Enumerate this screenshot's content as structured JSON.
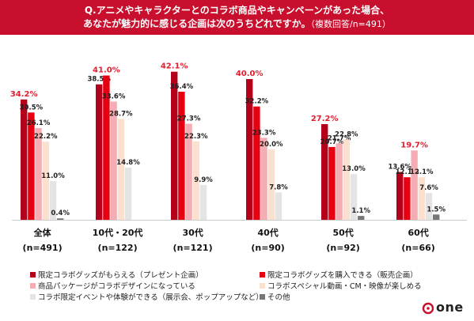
{
  "title": {
    "line1": "Q.アニメやキャラクターとのコラボ商品やキャンペーンがあった場合、",
    "line2": "あなたが魅力的に感じる企画は次のうちどれですか。",
    "note": "（複数回答/n=491）"
  },
  "colors": {
    "title_bg": "#c8102e",
    "max_label": "#e01e2e",
    "series": [
      "#b3001b",
      "#e50012",
      "#f4aeb3",
      "#fbe0d0",
      "#e4e4e4",
      "#777777"
    ]
  },
  "chart_data": {
    "type": "bar",
    "categories": [
      {
        "name": "全体",
        "n": "(n=491)"
      },
      {
        "name": "10代・20代",
        "n": "(n=122)"
      },
      {
        "name": "30代",
        "n": "(n=121)"
      },
      {
        "name": "40代",
        "n": "(n=90)"
      },
      {
        "name": "50代",
        "n": "(n=92)"
      },
      {
        "name": "60代",
        "n": "(n=66)"
      }
    ],
    "series": [
      {
        "name": "限定コラボグッズがもらえる（プレゼント企画）",
        "values": [
          34.2,
          38.5,
          42.1,
          40.0,
          27.2,
          13.6
        ]
      },
      {
        "name": "限定コラボグッズを購入できる（販売企画）",
        "values": [
          30.5,
          41.0,
          36.4,
          32.2,
          20.7,
          12.1
        ]
      },
      {
        "name": "商品パッケージがコラボデザインになっている",
        "values": [
          26.1,
          33.6,
          27.3,
          23.3,
          21.7,
          19.7
        ]
      },
      {
        "name": "コラボスペシャル動画・CM・映像が楽しめる",
        "values": [
          22.2,
          28.7,
          22.3,
          20.0,
          22.8,
          12.1
        ]
      },
      {
        "name": "コラボ限定イベントや体験ができる（展示会、ポップアップなど）",
        "values": [
          11.0,
          14.8,
          9.9,
          7.8,
          13.0,
          7.6
        ]
      },
      {
        "name": "その他",
        "values": [
          0.4,
          null,
          null,
          null,
          1.1,
          1.5
        ]
      }
    ],
    "value_suffix": "%",
    "highlight_max": true,
    "ylim": [
      0,
      45
    ],
    "grid": false,
    "legend_position": "bottom"
  },
  "logo": {
    "text": "one"
  }
}
